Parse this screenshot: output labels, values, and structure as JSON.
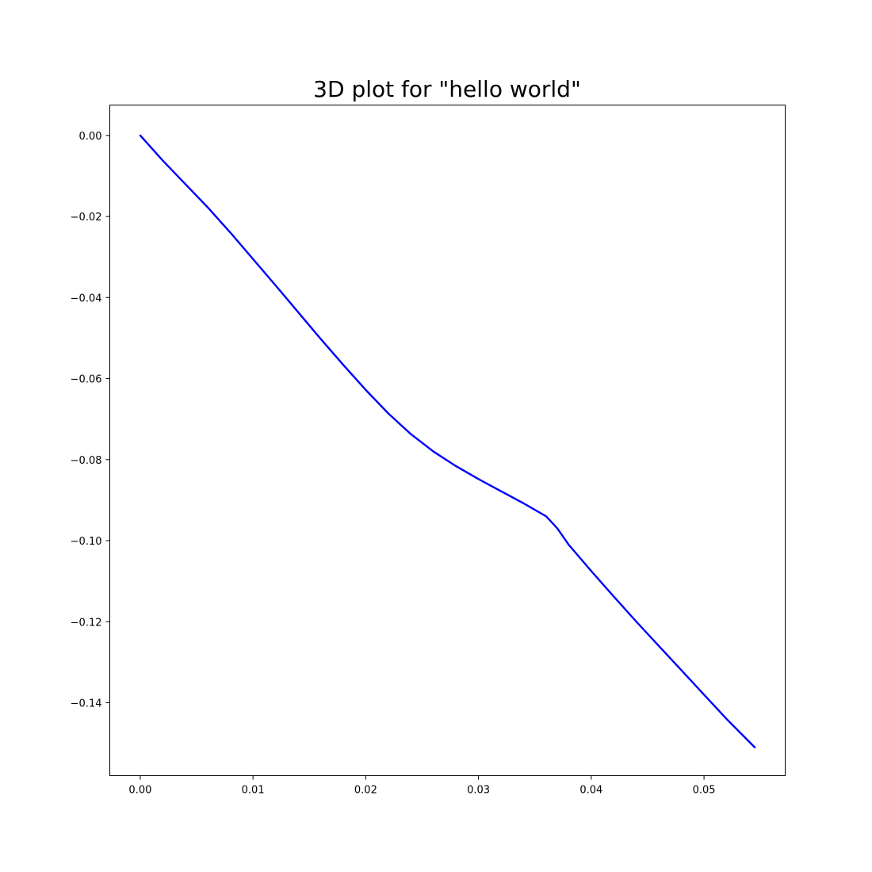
{
  "chart_data": {
    "type": "line",
    "title": "3D plot for \"hello world\"",
    "xlabel": "",
    "ylabel": "",
    "xlim": [
      -0.0027,
      0.0572
    ],
    "ylim": [
      -0.158,
      0.0075
    ],
    "xticks": [
      0.0,
      0.01,
      0.02,
      0.03,
      0.04,
      0.05
    ],
    "xtick_labels": [
      "0.00",
      "0.01",
      "0.02",
      "0.03",
      "0.04",
      "0.05"
    ],
    "yticks": [
      0.0,
      -0.02,
      -0.04,
      -0.06,
      -0.08,
      -0.1,
      -0.12,
      -0.14
    ],
    "ytick_labels": [
      "0.00",
      "−0.02",
      "−0.04",
      "−0.06",
      "−0.08",
      "−0.10",
      "−0.12",
      "−0.14"
    ],
    "grid": false,
    "series": [
      {
        "color": "#0000ff",
        "x": [
          0.0,
          0.002,
          0.004,
          0.006,
          0.008,
          0.01,
          0.012,
          0.014,
          0.016,
          0.018,
          0.02,
          0.022,
          0.024,
          0.026,
          0.028,
          0.03,
          0.032,
          0.034,
          0.036,
          0.037,
          0.038,
          0.04,
          0.042,
          0.044,
          0.046,
          0.048,
          0.05,
          0.052,
          0.0545
        ],
        "y": [
          0.0,
          -0.0062,
          -0.012,
          -0.0178,
          -0.024,
          -0.0305,
          -0.037,
          -0.0436,
          -0.0502,
          -0.0566,
          -0.0628,
          -0.0686,
          -0.0737,
          -0.078,
          -0.0816,
          -0.0848,
          -0.0878,
          -0.0908,
          -0.094,
          -0.097,
          -0.101,
          -0.1075,
          -0.1138,
          -0.12,
          -0.126,
          -0.132,
          -0.138,
          -0.144,
          -0.151
        ]
      }
    ]
  }
}
